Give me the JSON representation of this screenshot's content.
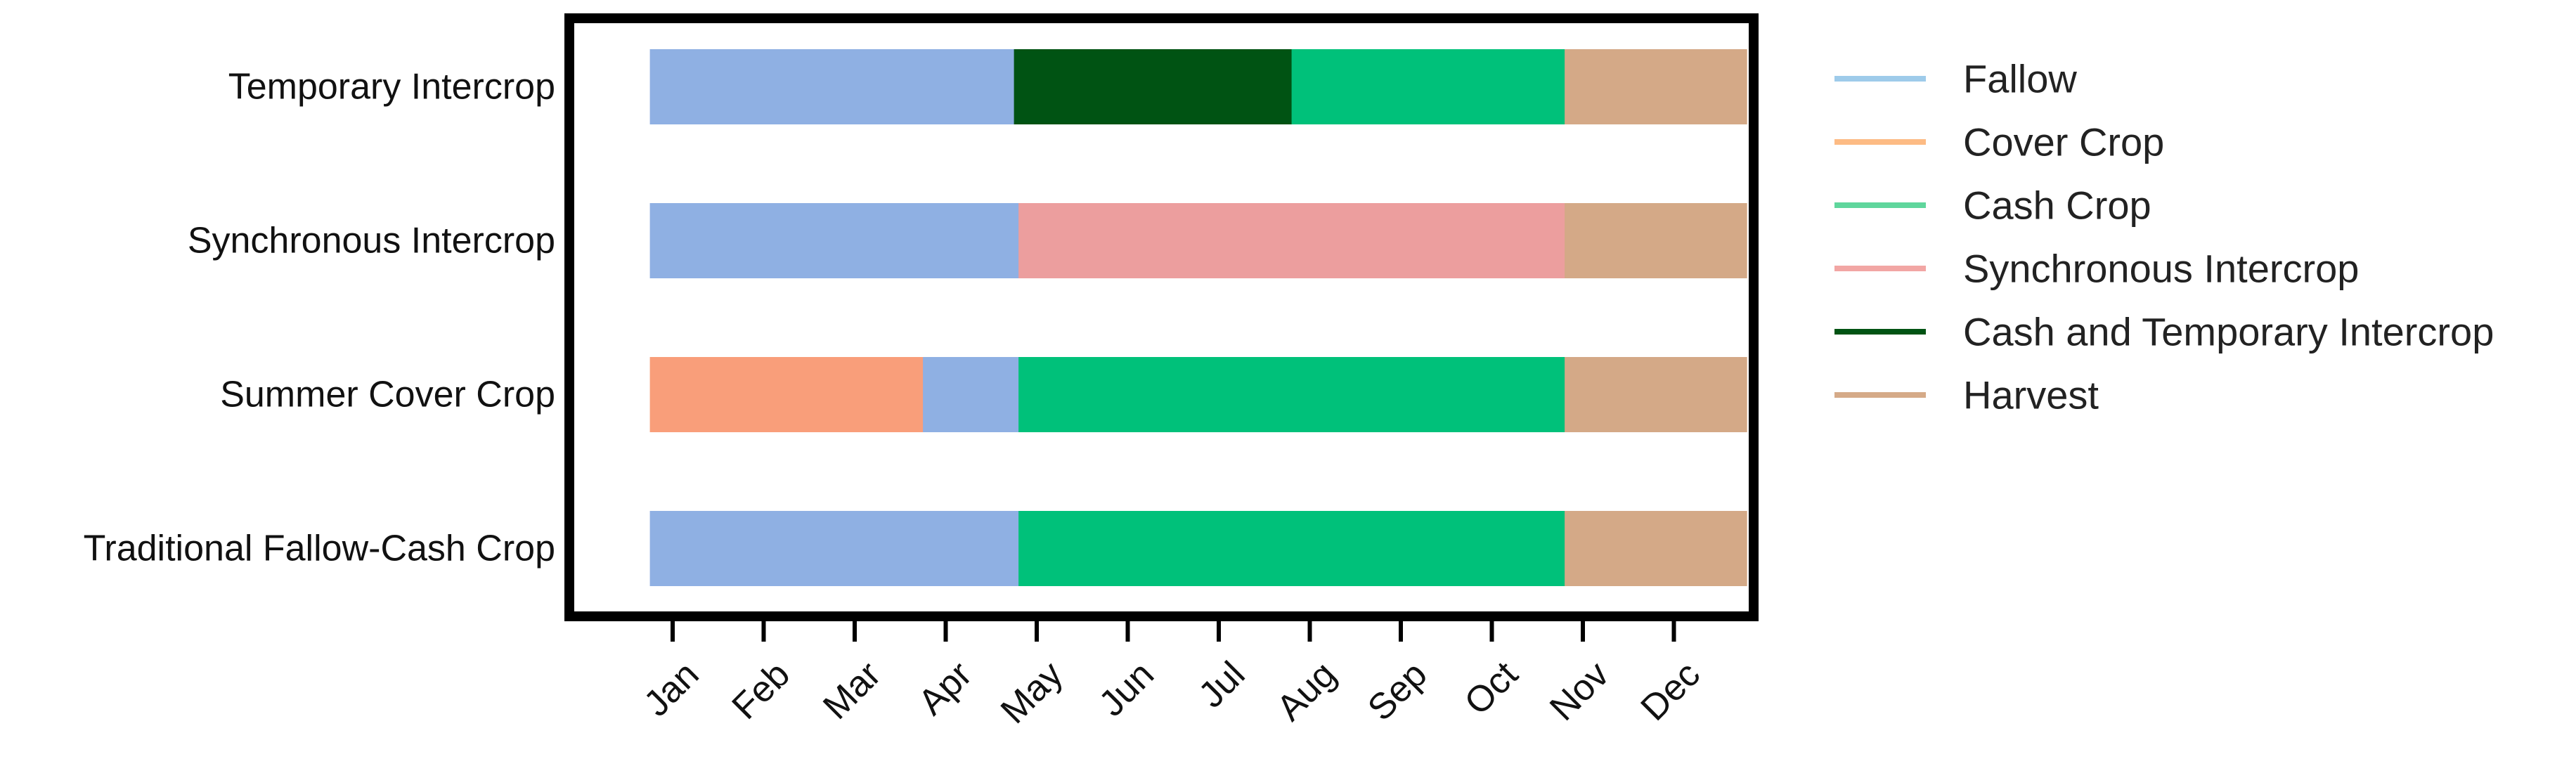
{
  "chart_data": {
    "type": "bar",
    "orientation": "horizontal-stacked",
    "title": "",
    "xlabel": "",
    "ylabel": "",
    "grid": false,
    "legend_placement": "right",
    "categories": [
      "Temporary Intercrop",
      "Synchronous Intercrop",
      "Summer Cover Crop",
      "Traditional Fallow-Cash Crop"
    ],
    "x_ticks": [
      "Jan",
      "Feb",
      "Mar",
      "Apr",
      "May",
      "Jun",
      "Jul",
      "Aug",
      "Sep",
      "Oct",
      "Nov",
      "Dec"
    ],
    "x_unit": "month",
    "xlim": [
      0.5,
      12.5
    ],
    "legend": [
      {
        "key": "fallow",
        "label": "Fallow",
        "color": "#8fb0e3",
        "legend_color": "#9ecbea"
      },
      {
        "key": "cover",
        "label": "Cover Crop",
        "color": "#f99e7a",
        "legend_color": "#fdbb84"
      },
      {
        "key": "cash",
        "label": "Cash Crop",
        "color": "#00c17a",
        "legend_color": "#5fd69c"
      },
      {
        "key": "sync",
        "label": "Synchronous Intercrop",
        "color": "#ec9e9e",
        "legend_color": "#f2a6a4"
      },
      {
        "key": "cashtemp",
        "label": "Cash and Temporary Intercrop",
        "color": "#005313",
        "legend_color": "#005313"
      },
      {
        "key": "harvest",
        "label": "Harvest",
        "color": "#d4a987",
        "legend_color": "#d5aa88"
      }
    ],
    "series": [
      {
        "category": "Temporary Intercrop",
        "segments": [
          {
            "type": "fallow",
            "start": 0.75,
            "end": 4.75
          },
          {
            "type": "cashtemp",
            "start": 4.75,
            "end": 7.8
          },
          {
            "type": "cash",
            "start": 7.8,
            "end": 10.8
          },
          {
            "type": "harvest",
            "start": 10.8,
            "end": 12.8
          }
        ]
      },
      {
        "category": "Synchronous Intercrop",
        "segments": [
          {
            "type": "fallow",
            "start": 0.75,
            "end": 4.8
          },
          {
            "type": "sync",
            "start": 4.8,
            "end": 10.8
          },
          {
            "type": "harvest",
            "start": 10.8,
            "end": 12.8
          }
        ]
      },
      {
        "category": "Summer Cover Crop",
        "segments": [
          {
            "type": "cover",
            "start": 0.75,
            "end": 3.75
          },
          {
            "type": "fallow",
            "start": 3.75,
            "end": 4.8
          },
          {
            "type": "cash",
            "start": 4.8,
            "end": 10.8
          },
          {
            "type": "harvest",
            "start": 10.8,
            "end": 12.8
          }
        ]
      },
      {
        "category": "Traditional Fallow-Cash Crop",
        "segments": [
          {
            "type": "fallow",
            "start": 0.75,
            "end": 4.8
          },
          {
            "type": "cash",
            "start": 4.8,
            "end": 10.8
          },
          {
            "type": "harvest",
            "start": 10.8,
            "end": 12.8
          }
        ]
      }
    ]
  }
}
